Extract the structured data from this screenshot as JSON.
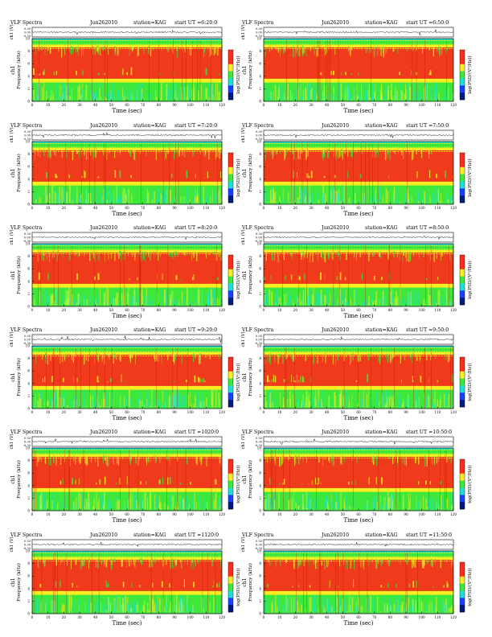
{
  "header": {
    "prefix": "VLF Spectra",
    "date": "Jun262010",
    "station": "station=KAG",
    "start_prefix": "start  UT ="
  },
  "labels": {
    "ch1": "ch1 (V)",
    "ch1_freq": "ch1",
    "freq": "Frequency  (kHz)",
    "time": "Time  (sec)",
    "psd": "log(PSD/(V²/Hz))"
  },
  "chart_data": [
    {
      "type": "heatmap",
      "panel": "0-0",
      "start_ut": "6:20:0"
    },
    {
      "type": "heatmap",
      "panel": "0-1",
      "start_ut": "6:50:0"
    },
    {
      "type": "heatmap",
      "panel": "1-0",
      "start_ut": "7:20:0"
    },
    {
      "type": "heatmap",
      "panel": "1-1",
      "start_ut": "7:50:0"
    },
    {
      "type": "heatmap",
      "panel": "2-0",
      "start_ut": "8:20:0"
    },
    {
      "type": "heatmap",
      "panel": "2-1",
      "start_ut": "8:50:0"
    },
    {
      "type": "heatmap",
      "panel": "3-0",
      "start_ut": "9:20:0"
    },
    {
      "type": "heatmap",
      "panel": "3-1",
      "start_ut": "9:50:0"
    },
    {
      "type": "heatmap",
      "panel": "4-0",
      "start_ut": "1020:0"
    },
    {
      "type": "heatmap",
      "panel": "4-1",
      "start_ut": "10:50:0"
    },
    {
      "type": "heatmap",
      "panel": "5-0",
      "start_ut": "1120:0"
    },
    {
      "type": "heatmap",
      "panel": "5-1",
      "start_ut": "11:50:0"
    }
  ],
  "axes": {
    "time": {
      "min": 0,
      "max": 120,
      "ticks": [
        0,
        10,
        20,
        30,
        40,
        50,
        60,
        70,
        80,
        90,
        100,
        110,
        120
      ]
    },
    "freq": {
      "min": 0,
      "max": 10,
      "ticks": [
        0,
        2,
        4,
        6,
        8,
        10
      ],
      "unit": "kHz"
    },
    "ch1": {
      "ticks": [
        "0.30",
        "0.00",
        "-0.30"
      ],
      "unit": "V"
    }
  },
  "colors": {
    "red": "#ff2a1a",
    "yellow": "#f8ee22",
    "green": "#3ee83a",
    "cyan": "#1ae0d8",
    "blue": "#1a40ff",
    "navy": "#001a80"
  }
}
